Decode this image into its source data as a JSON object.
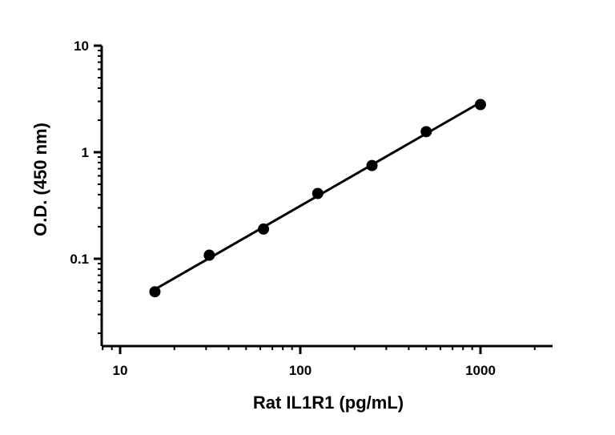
{
  "chart_data": {
    "type": "scatter",
    "xlabel": "Rat IL1R1 (pg/mL)",
    "ylabel": "O.D. (450 nm)",
    "x_scale": "log",
    "y_scale": "log",
    "xlim": [
      8,
      2500
    ],
    "ylim": [
      0.02,
      10
    ],
    "x_ticks": [
      10,
      100,
      1000
    ],
    "x_tick_labels": [
      "10",
      "100",
      "1000"
    ],
    "y_ticks": [
      0.1,
      1,
      10
    ],
    "y_tick_labels": [
      "0.1",
      "1",
      "10"
    ],
    "grid": false,
    "legend": "none",
    "trendline": "linear fit (log-log)",
    "series": [
      {
        "x": [
          15.6,
          31.25,
          62.5,
          125,
          250,
          500,
          1000
        ],
        "y": [
          0.049,
          0.108,
          0.19,
          0.41,
          0.75,
          1.56,
          2.8
        ]
      }
    ],
    "colors": {
      "points": "#000000",
      "line": "#000000",
      "axes": "#000000"
    }
  }
}
